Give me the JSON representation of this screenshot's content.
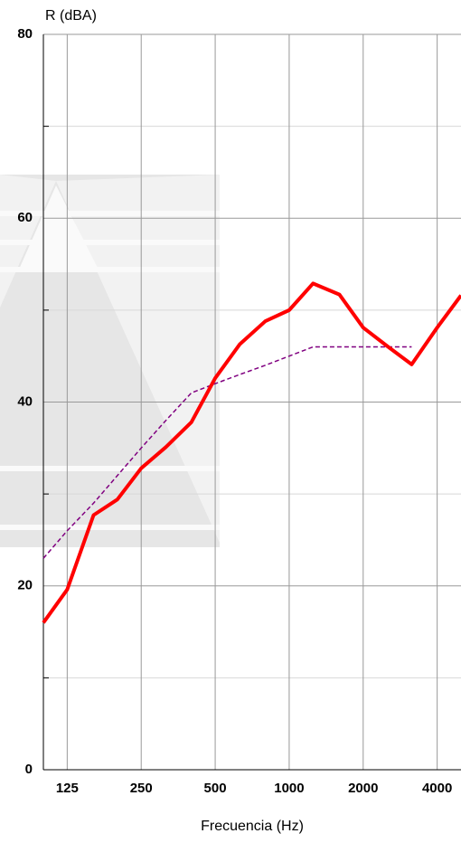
{
  "chart_data": {
    "type": "line",
    "y_label": "R (dBA)",
    "x_label": "Frecuencia (Hz)",
    "x": [
      100,
      125,
      160,
      200,
      250,
      315,
      400,
      500,
      630,
      800,
      1000,
      1250,
      1600,
      2000,
      2500,
      3150,
      4000,
      5000
    ],
    "series": [
      {
        "color": "#ff0000",
        "values": [
          16,
          19.6,
          27.7,
          29.4,
          32.8,
          35.1,
          37.8,
          42.6,
          46.3,
          48.8,
          50,
          52.9,
          51.7,
          48.1,
          46.1,
          44.1,
          48.1,
          51.6
        ]
      },
      {
        "color": "#800080",
        "dashed": true,
        "values": [
          23,
          26,
          29,
          32,
          35,
          38,
          41,
          42,
          43,
          44,
          45,
          46,
          46,
          46,
          46,
          46,
          null,
          null
        ]
      }
    ],
    "xscale": "log",
    "xlim": [
      100,
      5000
    ],
    "xticks": [
      125,
      250,
      500,
      1000,
      2000,
      4000
    ],
    "ylim": [
      0,
      80
    ],
    "yticks": [
      0,
      20,
      40,
      60,
      80
    ],
    "minor_yticks": [
      10,
      30,
      50,
      70
    ],
    "grid": true
  }
}
